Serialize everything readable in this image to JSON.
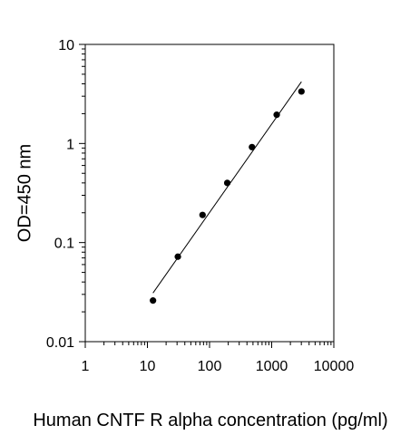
{
  "chart_data": {
    "type": "scatter",
    "title": "",
    "xlabel": "Human CNTF R alpha concentration (pg/ml)",
    "ylabel": "OD=450 nm",
    "xscale": "log",
    "yscale": "log",
    "xlim": [
      1,
      10000
    ],
    "ylim": [
      0.01,
      10
    ],
    "x_ticks": [
      1,
      10,
      100,
      1000,
      10000
    ],
    "x_tick_labels": [
      "1",
      "10",
      "100",
      "1000",
      "10000"
    ],
    "y_ticks": [
      0.01,
      0.1,
      1,
      10
    ],
    "y_tick_labels": [
      "0.01",
      "0.1",
      "1",
      "10"
    ],
    "grid": false,
    "legend": "none",
    "series": [
      {
        "type": "scatter",
        "x": [
          12.3,
          30.9,
          77.2,
          193,
          482,
          1205,
          3013
        ],
        "y": [
          0.026,
          0.072,
          0.19,
          0.4,
          0.92,
          1.95,
          3.35
        ]
      }
    ],
    "fit_line": {
      "x": [
        12.3,
        3013
      ],
      "y": [
        0.031,
        4.2
      ]
    },
    "colors": {
      "marker": "#000000",
      "line": "#000000",
      "axis": "#000000"
    }
  }
}
